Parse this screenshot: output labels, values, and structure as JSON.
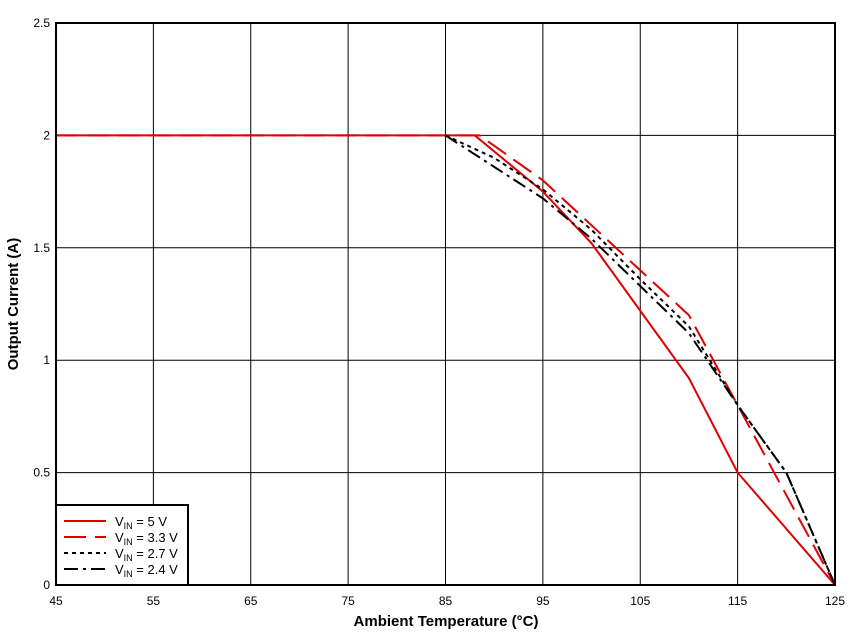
{
  "chart_data": {
    "type": "line",
    "title": "",
    "xlabel": "Ambient Temperature (°C)",
    "ylabel": "Output Current (A)",
    "xlim": [
      45,
      125
    ],
    "ylim": [
      0,
      2.5
    ],
    "xticks": [
      45,
      55,
      65,
      75,
      85,
      95,
      105,
      115,
      125
    ],
    "yticks": [
      0,
      0.5,
      1,
      1.5,
      2,
      2.5
    ],
    "ytick_labels": [
      "0",
      "0.5",
      "1",
      "1.5",
      "2",
      "2.5"
    ],
    "grid": true,
    "legend_position": "lower left",
    "series": [
      {
        "name": "VIN = 5 V",
        "sub": "IN",
        "pre": "V",
        "post": " = 5 V",
        "color": "#e00000",
        "dash": "",
        "x": [
          45,
          88,
          95,
          100,
          105,
          110,
          115,
          125
        ],
        "y": [
          2,
          2,
          1.75,
          1.52,
          1.22,
          0.92,
          0.5,
          0
        ]
      },
      {
        "name": "VIN = 3.3 V",
        "sub": "IN",
        "pre": "V",
        "post": " = 3.3 V",
        "color": "#e00000",
        "dash": "22,9",
        "x": [
          45,
          88.5,
          95,
          100,
          105,
          110,
          115,
          120,
          125
        ],
        "y": [
          2,
          2,
          1.8,
          1.6,
          1.4,
          1.2,
          0.8,
          0.4,
          0
        ]
      },
      {
        "name": "VIN = 2.7 V",
        "sub": "IN",
        "pre": "V",
        "post": " = 2.7 V",
        "color": "#000000",
        "dash": "4,4",
        "x": [
          85,
          90,
          95,
          100,
          105,
          110,
          115,
          120,
          125
        ],
        "y": [
          2,
          1.9,
          1.76,
          1.58,
          1.36,
          1.15,
          0.8,
          0.5,
          0
        ]
      },
      {
        "name": "VIN = 2.4 V",
        "sub": "IN",
        "pre": "V",
        "post": " = 2.4 V",
        "color": "#000000",
        "dash": "14,5,3,5",
        "x": [
          85,
          90,
          95,
          100,
          105,
          110,
          115,
          120,
          125
        ],
        "y": [
          2,
          1.86,
          1.72,
          1.54,
          1.33,
          1.12,
          0.8,
          0.5,
          0
        ]
      }
    ]
  }
}
